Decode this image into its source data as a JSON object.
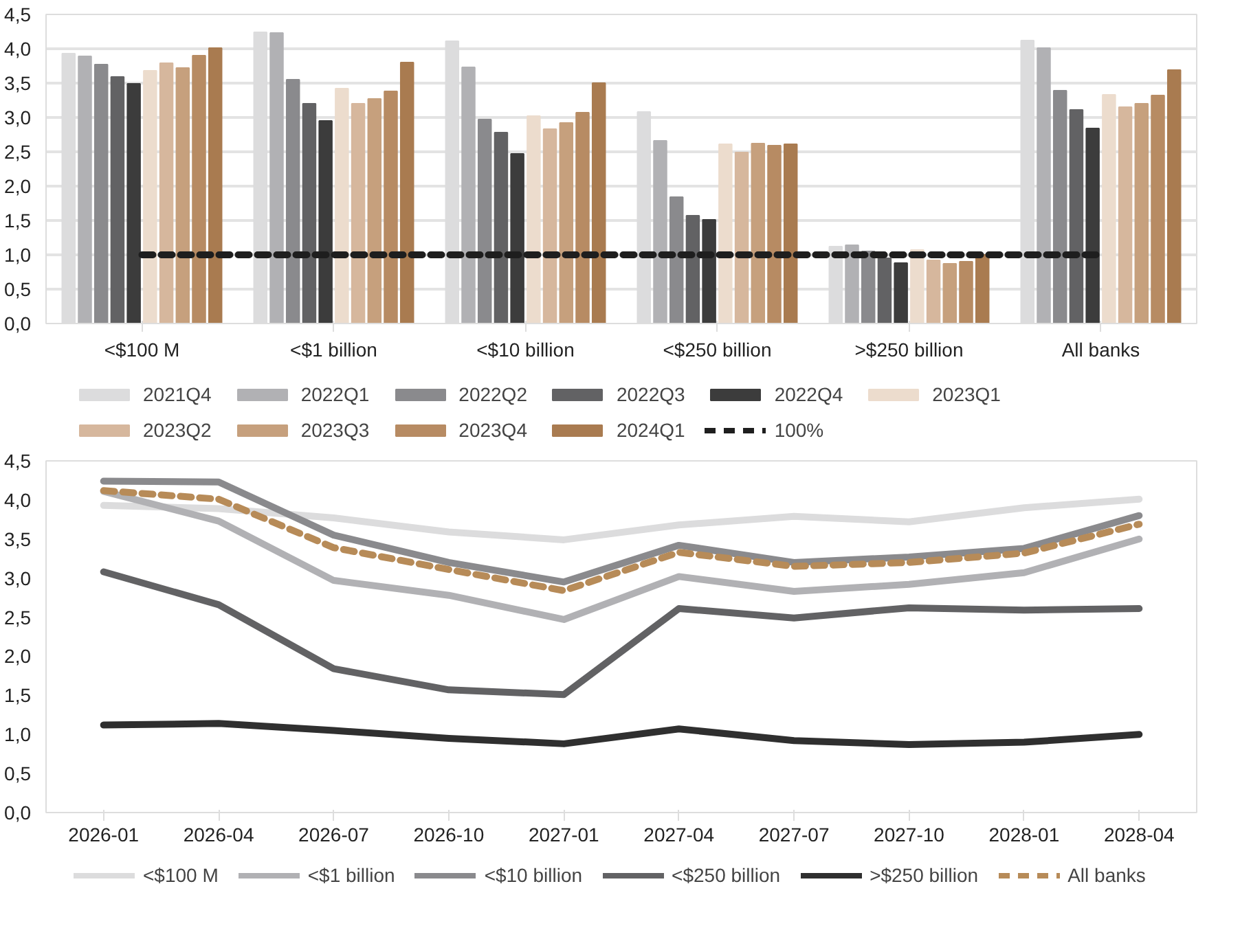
{
  "chart_data": [
    {
      "type": "bar",
      "categories": [
        "<$100 M",
        "<$1 billion",
        "<$10 billion",
        "<$250 billion",
        ">$250 billion",
        "All banks"
      ],
      "ylim": [
        0,
        4.5
      ],
      "yticks": [
        {
          "value": 0,
          "label": "0,0"
        },
        {
          "value": 0.5,
          "label": "0,5"
        },
        {
          "value": 1,
          "label": "1,0"
        },
        {
          "value": 1.5,
          "label": "1,5"
        },
        {
          "value": 2,
          "label": "2,0"
        },
        {
          "value": 2.5,
          "label": "2,5"
        },
        {
          "value": 3,
          "label": "3,0"
        },
        {
          "value": 3.5,
          "label": "3,5"
        },
        {
          "value": 4,
          "label": "4,0"
        },
        {
          "value": 4.5,
          "label": "4,5"
        }
      ],
      "grid": "y",
      "legend": "bottom",
      "series": [
        {
          "name": "2021Q4",
          "color": "#dcdcdd",
          "values": [
            3.93,
            4.24,
            4.11,
            3.08,
            1.12,
            4.12
          ]
        },
        {
          "name": "2022Q1",
          "color": "#b1b1b4",
          "values": [
            3.89,
            4.23,
            3.73,
            2.66,
            1.14,
            4.01
          ]
        },
        {
          "name": "2022Q2",
          "color": "#8a8a8d",
          "values": [
            3.77,
            3.55,
            2.97,
            1.84,
            1.05,
            3.39
          ]
        },
        {
          "name": "2022Q3",
          "color": "#626264",
          "values": [
            3.59,
            3.2,
            2.78,
            1.57,
            0.95,
            3.11
          ]
        },
        {
          "name": "2022Q4",
          "color": "#3c3c3c",
          "values": [
            3.49,
            2.95,
            2.47,
            1.51,
            0.88,
            2.84
          ]
        },
        {
          "name": "2023Q1",
          "color": "#ecdccd",
          "values": [
            3.68,
            3.42,
            3.02,
            2.61,
            1.07,
            3.33
          ]
        },
        {
          "name": "2023Q2",
          "color": "#d6b79d",
          "values": [
            3.79,
            3.2,
            2.83,
            2.49,
            0.92,
            3.15
          ]
        },
        {
          "name": "2023Q3",
          "color": "#c6a07d",
          "values": [
            3.72,
            3.27,
            2.92,
            2.62,
            0.87,
            3.2
          ]
        },
        {
          "name": "2023Q4",
          "color": "#b78b63",
          "values": [
            3.9,
            3.38,
            3.07,
            2.59,
            0.9,
            3.32
          ]
        },
        {
          "name": "2024Q1",
          "color": "#a97b50",
          "values": [
            4.01,
            3.8,
            3.5,
            2.61,
            1.0,
            3.69
          ]
        },
        {
          "name": "100%",
          "type": "line",
          "color": "#1e1e1e",
          "line_style": "dashed",
          "values": [
            1,
            1,
            1,
            1,
            1,
            1
          ]
        }
      ]
    },
    {
      "type": "line",
      "categories": [
        "2026-01",
        "2026-04",
        "2026-07",
        "2026-10",
        "2027-01",
        "2027-04",
        "2027-07",
        "2027-10",
        "2028-01",
        "2028-04"
      ],
      "ylim": [
        0,
        4.5
      ],
      "yticks": [
        {
          "value": 0,
          "label": "0,0"
        },
        {
          "value": 0.5,
          "label": "0,5"
        },
        {
          "value": 1,
          "label": "1,0"
        },
        {
          "value": 1.5,
          "label": "1,5"
        },
        {
          "value": 2,
          "label": "2,0"
        },
        {
          "value": 2.5,
          "label": "2,5"
        },
        {
          "value": 3,
          "label": "3,0"
        },
        {
          "value": 3.5,
          "label": "3,5"
        },
        {
          "value": 4,
          "label": "4,0"
        },
        {
          "value": 4.5,
          "label": "4,5"
        }
      ],
      "grid": false,
      "legend": "bottom",
      "series": [
        {
          "name": "<$100 M",
          "color": "#dcdcdd",
          "values": [
            3.93,
            3.89,
            3.77,
            3.59,
            3.49,
            3.68,
            3.79,
            3.72,
            3.9,
            4.01
          ]
        },
        {
          "name": "<$1 billion",
          "color": "#b1b1b4",
          "values": [
            4.11,
            3.73,
            2.97,
            2.78,
            2.47,
            3.02,
            2.83,
            2.92,
            3.07,
            3.5
          ]
        },
        {
          "name": "<$10 billion",
          "color": "#8a8a8d",
          "values": [
            4.24,
            4.23,
            3.55,
            3.2,
            2.95,
            3.42,
            3.2,
            3.27,
            3.38,
            3.8
          ]
        },
        {
          "name": "<$250 billion",
          "color": "#626264",
          "values": [
            3.08,
            2.66,
            1.84,
            1.57,
            1.51,
            2.61,
            2.49,
            2.62,
            2.59,
            2.61
          ]
        },
        {
          "name": ">$250 billion",
          "color": "#2f2f2f",
          "values": [
            1.12,
            1.14,
            1.05,
            0.95,
            0.88,
            1.07,
            0.92,
            0.87,
            0.9,
            1.0
          ]
        },
        {
          "name": "All banks",
          "color": "#b78b58",
          "line_style": "dashed",
          "values": [
            4.12,
            4.01,
            3.39,
            3.11,
            2.84,
            3.33,
            3.15,
            3.2,
            3.32,
            3.69
          ]
        }
      ]
    }
  ]
}
